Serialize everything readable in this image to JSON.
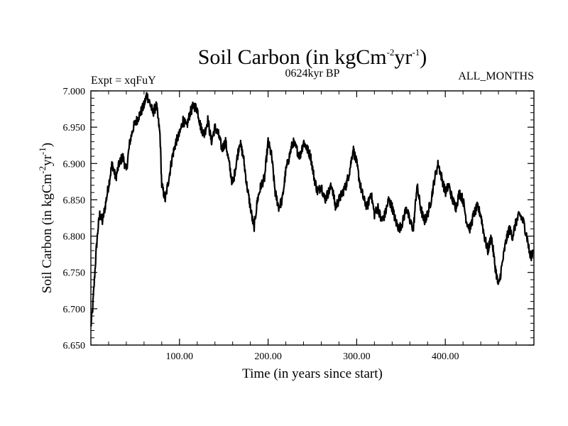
{
  "chart_data": {
    "type": "line",
    "title": "Soil Carbon (in kgCm",
    "title_sup1": "-2",
    "title_mid": "yr",
    "title_sup2": "-1",
    "title_end": ")",
    "subtitle": "0624kyr BP",
    "left_note": "Expt = xqFuY",
    "right_note": "ALL_MONTHS",
    "xlabel": "Time (in years since start)",
    "ylabel": "Soil Carbon (in kgCm",
    "ylabel_sup1": "-2",
    "ylabel_mid": "yr",
    "ylabel_sup2": "-1",
    "ylabel_end": ")",
    "xlim": [
      0,
      500
    ],
    "ylim": [
      6.65,
      7.0
    ],
    "xticks": [
      100,
      200,
      300,
      400
    ],
    "xtick_labels": [
      "100.00",
      "200.00",
      "300.00",
      "400.00"
    ],
    "yticks": [
      6.65,
      6.7,
      6.75,
      6.8,
      6.85,
      6.9,
      6.95,
      7.0
    ],
    "ytick_labels": [
      "6.650",
      "6.700",
      "6.750",
      "6.800",
      "6.850",
      "6.900",
      "6.950",
      "7.000"
    ],
    "grid": false,
    "series": [
      {
        "name": "Soil Carbon",
        "color": "#000000",
        "x": [
          0,
          2,
          4,
          6,
          8,
          10,
          13,
          16,
          20,
          24,
          28,
          32,
          36,
          40,
          44,
          48,
          52,
          56,
          60,
          63,
          66,
          70,
          74,
          78,
          80,
          84,
          88,
          92,
          96,
          100,
          104,
          108,
          112,
          116,
          120,
          124,
          128,
          132,
          136,
          140,
          144,
          148,
          152,
          156,
          160,
          164,
          168,
          172,
          176,
          180,
          184,
          188,
          192,
          196,
          200,
          204,
          208,
          212,
          216,
          220,
          224,
          228,
          232,
          236,
          240,
          244,
          248,
          252,
          256,
          260,
          264,
          268,
          272,
          276,
          280,
          284,
          288,
          292,
          296,
          300,
          304,
          308,
          312,
          316,
          320,
          324,
          328,
          332,
          336,
          340,
          344,
          348,
          352,
          356,
          360,
          364,
          368,
          372,
          376,
          380,
          384,
          388,
          392,
          396,
          400,
          404,
          408,
          412,
          416,
          420,
          424,
          428,
          432,
          436,
          440,
          444,
          448,
          452,
          456,
          460,
          464,
          468,
          472,
          476,
          480,
          484,
          488,
          492,
          496,
          499
        ],
        "y": [
          6.675,
          6.7,
          6.74,
          6.78,
          6.81,
          6.83,
          6.82,
          6.84,
          6.87,
          6.9,
          6.88,
          6.9,
          6.91,
          6.89,
          6.93,
          6.95,
          6.96,
          6.97,
          6.98,
          6.995,
          6.985,
          6.97,
          6.98,
          6.94,
          6.87,
          6.85,
          6.88,
          6.91,
          6.93,
          6.94,
          6.96,
          6.95,
          6.97,
          6.98,
          6.975,
          6.95,
          6.94,
          6.96,
          6.93,
          6.95,
          6.94,
          6.92,
          6.93,
          6.9,
          6.87,
          6.9,
          6.93,
          6.91,
          6.87,
          6.84,
          6.81,
          6.85,
          6.87,
          6.88,
          6.93,
          6.91,
          6.86,
          6.84,
          6.85,
          6.89,
          6.91,
          6.93,
          6.92,
          6.91,
          6.93,
          6.92,
          6.91,
          6.88,
          6.86,
          6.87,
          6.85,
          6.86,
          6.87,
          6.84,
          6.85,
          6.86,
          6.87,
          6.89,
          6.92,
          6.9,
          6.87,
          6.85,
          6.84,
          6.86,
          6.83,
          6.84,
          6.82,
          6.83,
          6.85,
          6.84,
          6.82,
          6.81,
          6.82,
          6.84,
          6.82,
          6.81,
          6.87,
          6.84,
          6.82,
          6.83,
          6.85,
          6.88,
          6.9,
          6.88,
          6.86,
          6.87,
          6.85,
          6.84,
          6.86,
          6.85,
          6.82,
          6.81,
          6.83,
          6.84,
          6.83,
          6.8,
          6.78,
          6.8,
          6.76,
          6.73,
          6.76,
          6.79,
          6.81,
          6.8,
          6.82,
          6.83,
          6.82,
          6.8,
          6.77,
          6.78
        ]
      }
    ]
  }
}
